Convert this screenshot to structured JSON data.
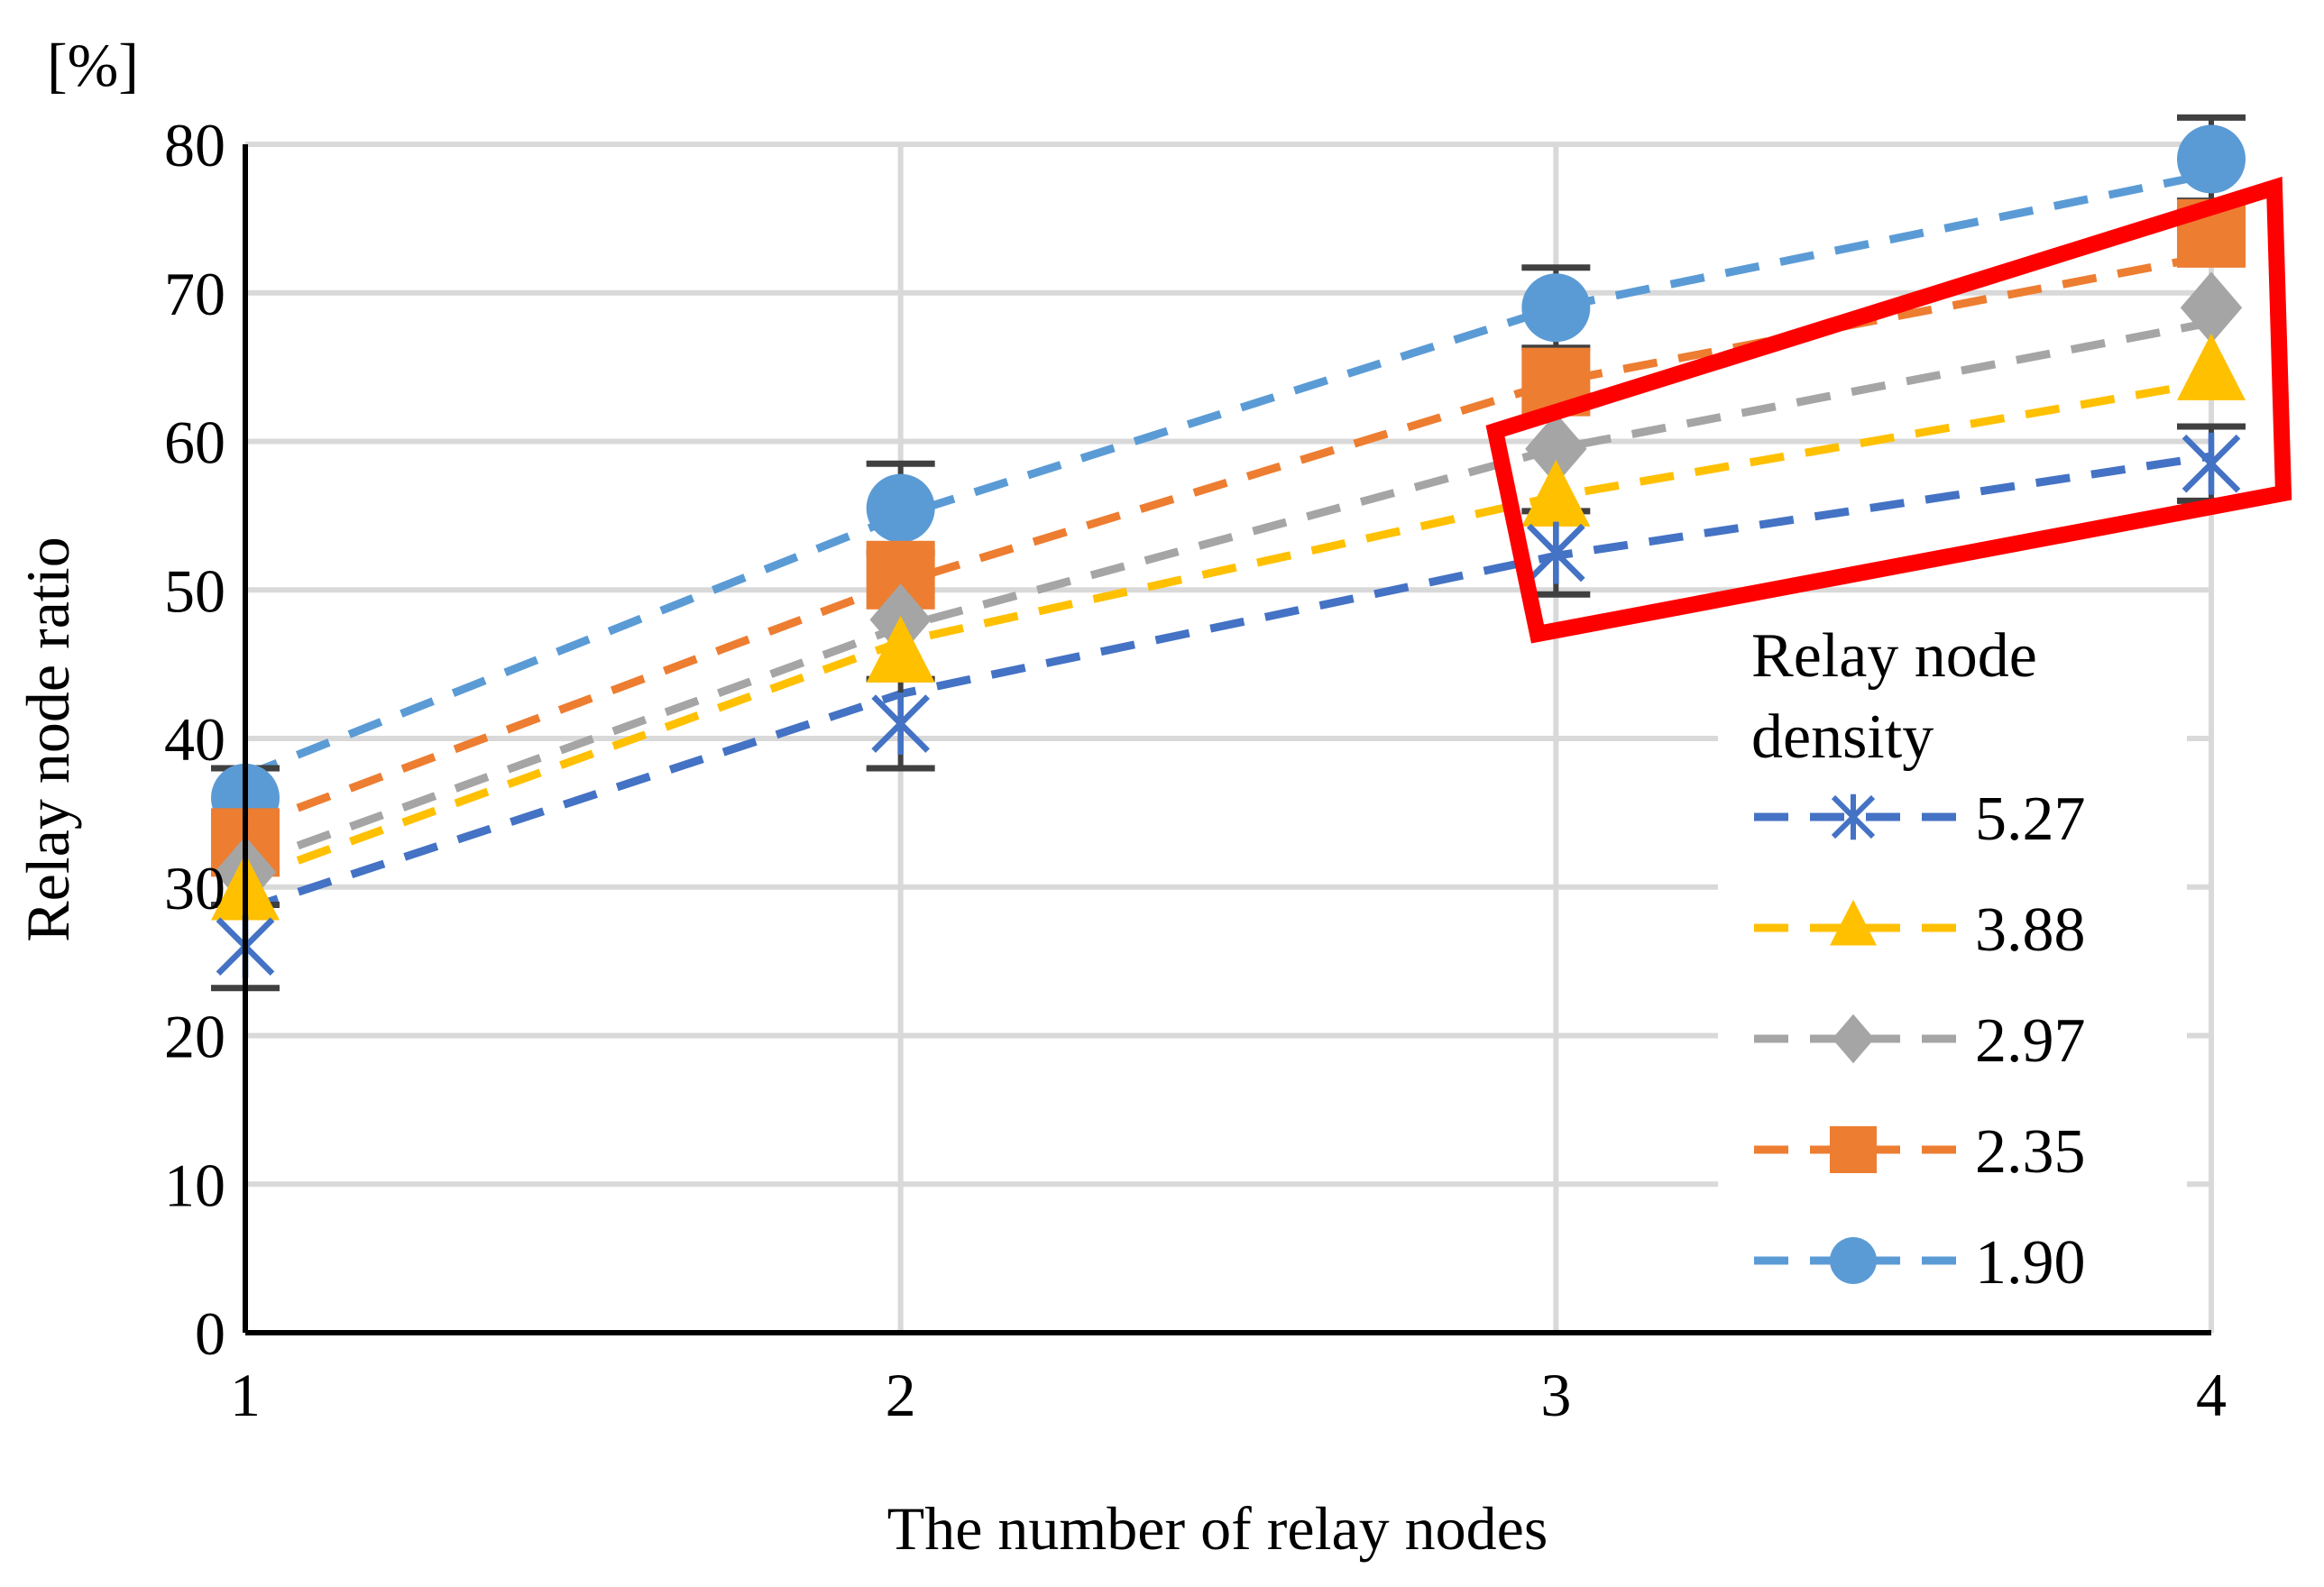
{
  "chart_data": {
    "type": "scatter",
    "title": "",
    "unit_label": "[%]",
    "xlabel": "The number of relay nodes",
    "ylabel": "Relay node ratio",
    "x": [
      1,
      2,
      3,
      4
    ],
    "x_tick_labels": [
      "1",
      "2",
      "3",
      "4"
    ],
    "xlim": [
      1,
      4
    ],
    "ylim": [
      0,
      80
    ],
    "y_ticks": [
      0,
      10,
      20,
      30,
      40,
      50,
      60,
      70,
      80
    ],
    "y_tick_labels": [
      "0",
      "10",
      "20",
      "30",
      "40",
      "50",
      "60",
      "70",
      "80"
    ],
    "grid": true,
    "legend_title_lines": [
      "Relay node",
      "density"
    ],
    "legend_position": "bottom-right",
    "series": [
      {
        "name": "5.27",
        "marker": "asterisk",
        "color": "#4472C4",
        "values": [
          26,
          41,
          52.5,
          58.5
        ],
        "error": [
          2.8,
          3,
          2.8,
          2.5
        ],
        "trend": [
          28.5,
          43,
          52.3,
          59
        ]
      },
      {
        "name": "3.88",
        "marker": "triangle",
        "color": "#FFC000",
        "values": [
          29.5,
          45.5,
          56,
          64.5
        ],
        "error": [
          0,
          0,
          0,
          0
        ],
        "trend": [
          30.5,
          46.5,
          56.3,
          64
        ]
      },
      {
        "name": "2.97",
        "marker": "diamond",
        "color": "#A5A5A5",
        "values": [
          31,
          48,
          59.5,
          69
        ],
        "error": [
          0,
          0,
          0,
          0
        ],
        "trend": [
          31.5,
          47.5,
          59.5,
          68
        ]
      },
      {
        "name": "2.35",
        "marker": "square",
        "color": "#ED7D31",
        "values": [
          33,
          51,
          64,
          74
        ],
        "error": [
          0,
          0,
          0,
          0
        ],
        "trend": [
          34,
          50.5,
          64,
          72.5
        ]
      },
      {
        "name": "1.90",
        "marker": "circle",
        "color": "#5B9BD5",
        "values": [
          36,
          55.5,
          69,
          79
        ],
        "error": [
          2,
          3,
          2.7,
          2.8
        ],
        "trend": [
          37.5,
          55,
          69,
          78
        ]
      }
    ],
    "highlight": {
      "shape": "box",
      "color": "#FF0000",
      "around": "x = 3 to 4"
    }
  }
}
